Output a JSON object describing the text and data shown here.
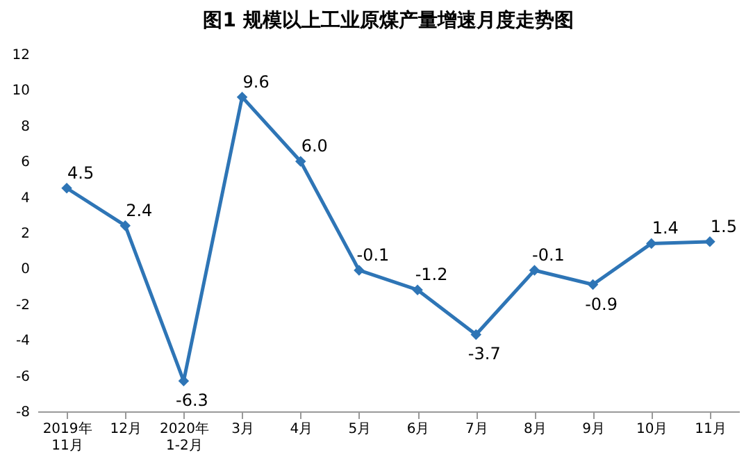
{
  "chart_data": {
    "type": "line",
    "title": "图1  规模以上工业原煤产量增速月度走势图",
    "categories": [
      "2019年\n11月",
      "12月",
      "2020年\n1-2月",
      "3月",
      "4月",
      "5月",
      "6月",
      "7月",
      "8月",
      "9月",
      "10月",
      "11月"
    ],
    "series": [
      {
        "color": "#2e75b6",
        "values": [
          4.5,
          2.4,
          -6.3,
          9.6,
          6.0,
          -0.1,
          -1.2,
          -3.7,
          -0.1,
          -0.9,
          1.4,
          1.5
        ],
        "value_labels": [
          "4.5",
          "2.4",
          "-6.3",
          "9.6",
          "6.0",
          "-0.1",
          "-1.2",
          "-3.7",
          "-0.1",
          "-0.9",
          "1.4",
          "1.5"
        ]
      }
    ],
    "ylim": [
      -8,
      12
    ],
    "yticks": [
      -8,
      -6,
      -4,
      -2,
      0,
      2,
      4,
      6,
      8,
      10,
      12
    ],
    "grid": false,
    "marker": "diamond",
    "line_style": "solid",
    "legend": false
  }
}
